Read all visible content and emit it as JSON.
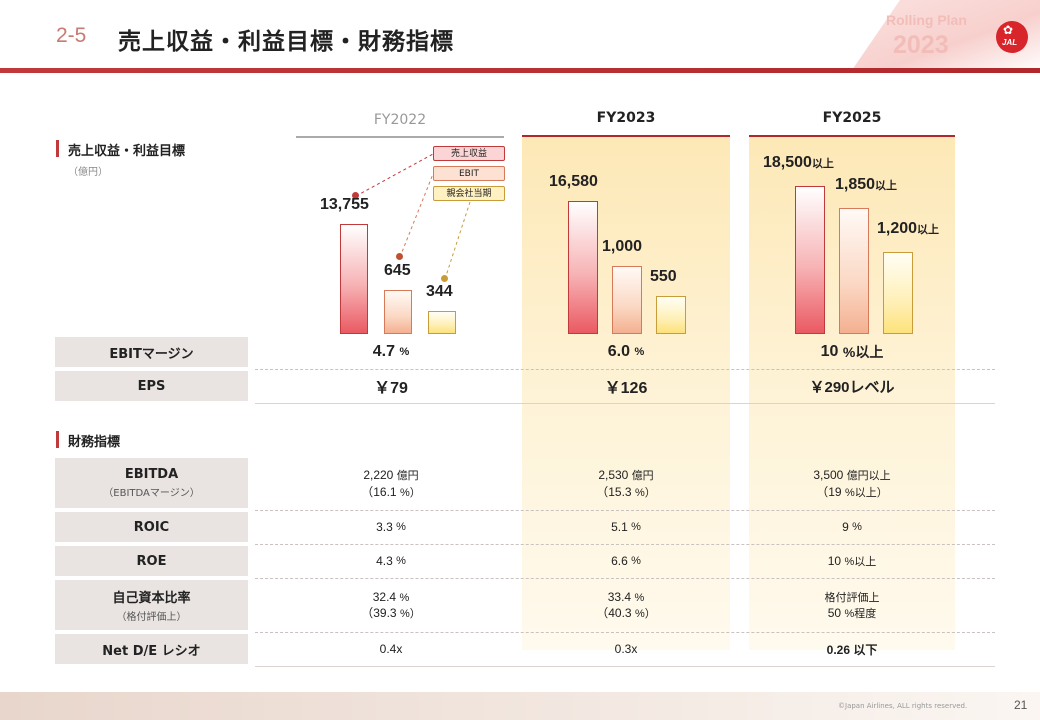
{
  "header": {
    "section_number": "2-5",
    "title": "売上収益・利益目標・財務指標"
  },
  "badge": {
    "line1": "Rolling Plan",
    "line2": "2023"
  },
  "logo": {
    "text": "JAL",
    "color": "#d8242b"
  },
  "columns": {
    "fy2022": "FY2022",
    "fy2023": "FY2023",
    "fy2025": "FY2025"
  },
  "section1": {
    "title": "売上収益・利益目標",
    "unit": "（億円）"
  },
  "legend": {
    "revenue": "売上収益",
    "ebit": "EBIT",
    "net": "親会社当期"
  },
  "chart_data": {
    "type": "bar",
    "categories": [
      "FY2022",
      "FY2023",
      "FY2025"
    ],
    "series": [
      {
        "name": "売上収益",
        "values": [
          13755,
          16580,
          18500
        ],
        "labels": [
          "13,755",
          "16,580",
          "18,500"
        ],
        "suffix": [
          "",
          "",
          "以上"
        ]
      },
      {
        "name": "EBIT",
        "values": [
          645,
          1000,
          1850
        ],
        "labels": [
          "645",
          "1,000",
          "1,850"
        ],
        "suffix": [
          "",
          "",
          "以上"
        ]
      },
      {
        "name": "親会社当期",
        "values": [
          344,
          550,
          1200
        ],
        "labels": [
          "344",
          "550",
          "1,200"
        ],
        "suffix": [
          "",
          "",
          "以上"
        ]
      }
    ]
  },
  "top_rows": {
    "ebit_margin": {
      "label": "EBITマージン",
      "fy2022": "4.7",
      "fy2023": "6.0",
      "fy2025": "10",
      "unit": "%",
      "unit25": "%以上"
    },
    "eps": {
      "label": "EPS",
      "fy2022": "￥79",
      "fy2023": "￥126",
      "fy2025": "￥290レベル"
    }
  },
  "section2": {
    "title": "財務指標"
  },
  "fin_rows": {
    "ebitda": {
      "label": "EBITDA",
      "sub": "（EBITDAマージン）",
      "fy2022": "2,220",
      "fy2022_unit": "億円",
      "fy2022_sub": "（16.1",
      "fy2022_sub_unit": "%）",
      "fy2023": "2,530",
      "fy2023_unit": "億円",
      "fy2023_sub": "（15.3",
      "fy2023_sub_unit": "%）",
      "fy2025": "3,500",
      "fy2025_unit": "億円以上",
      "fy2025_sub": "（19",
      "fy2025_sub_unit": "%以上）"
    },
    "roic": {
      "label": "ROIC",
      "fy2022": "3.3",
      "fy2022_unit": "%",
      "fy2023": "5.1",
      "fy2023_unit": "%",
      "fy2025": "9",
      "fy2025_unit": "%"
    },
    "roe": {
      "label": "ROE",
      "fy2022": "4.3",
      "fy2022_unit": "%",
      "fy2023": "6.6",
      "fy2023_unit": "%",
      "fy2025": "10",
      "fy2025_unit": "%以上"
    },
    "equity": {
      "label": "自己資本比率",
      "sub": "（格付評価上）",
      "fy2022": "32.4",
      "fy2022_unit": "%",
      "fy2022_sub": "（39.3",
      "fy2022_sub_unit": "%）",
      "fy2023": "33.4",
      "fy2023_unit": "%",
      "fy2023_sub": "（40.3",
      "fy2023_sub_unit": "%）",
      "fy2025_line1": "格付評価上",
      "fy2025": "50",
      "fy2025_unit": "%程度"
    },
    "de": {
      "label": "Net D/E レシオ",
      "fy2022": "0.4x",
      "fy2023": "0.3x",
      "fy2025": "0.26 以下"
    }
  },
  "footer": {
    "copyright": "©Japan Airlines, ALL rights reserved.",
    "page": "21"
  }
}
